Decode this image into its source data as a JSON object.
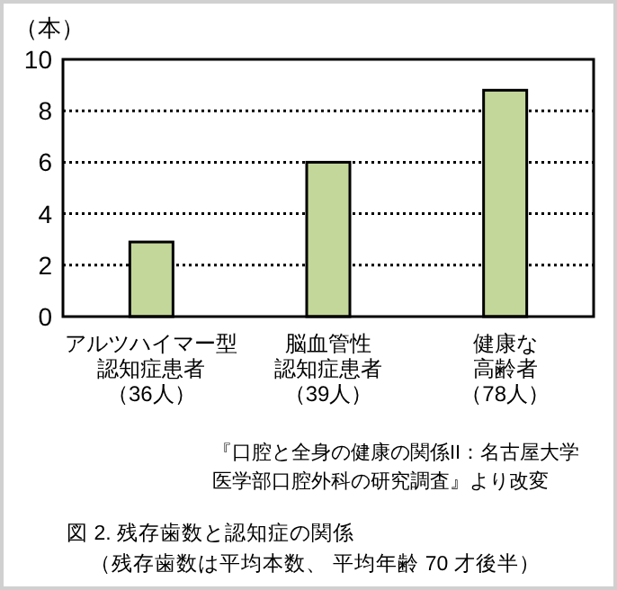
{
  "chart_data": {
    "type": "bar",
    "title": "図 2.  残存歯数と認知症の関係",
    "subtitle": "（残存歯数は平均本数、 平均年齢 70 才後半）",
    "ylabel": "（本）",
    "categories": [
      "アルツハイマー型認知症患者（36人）",
      "脳血管性認知症患者（39人）",
      "健康な高齢者（78人）"
    ],
    "values": [
      2.9,
      6.0,
      8.8
    ],
    "color": "#c4d79b",
    "ylim": [
      0,
      10
    ],
    "yticks": [
      0,
      2,
      4,
      6,
      8,
      10
    ],
    "grid": "y",
    "annotations": [
      "『口腔と全身の健康の関係II：名古屋大学医学部口腔外科の研究調査』より改変"
    ]
  }
}
